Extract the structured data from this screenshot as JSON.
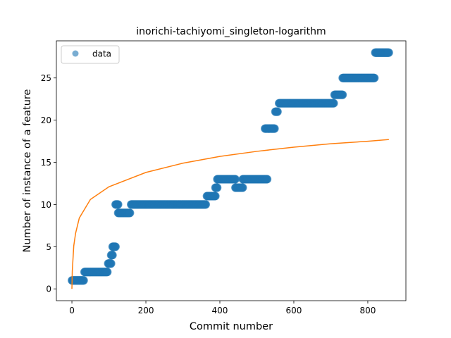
{
  "chart_data": {
    "type": "scatter",
    "title": "inorichi-tachiyomi_singleton-logarithm",
    "xlabel": "Commit number",
    "ylabel": "Number of instance of a feature",
    "xlim": [
      -42,
      903
    ],
    "ylim": [
      -1.4,
      29.4
    ],
    "xticks": [
      0,
      200,
      400,
      600,
      800
    ],
    "yticks": [
      0,
      5,
      10,
      15,
      20,
      25
    ],
    "grid": false,
    "legend": {
      "position": "upper-left",
      "entries": [
        "data"
      ]
    },
    "colors": {
      "data": "#1f77b4",
      "fit": "#ff7f0e"
    },
    "series": [
      {
        "name": "data",
        "kind": "scatter",
        "segments": [
          {
            "x_start": 0,
            "x_end": 32,
            "y": 1
          },
          {
            "x_start": 34,
            "x_end": 96,
            "y": 2
          },
          {
            "x_start": 98,
            "x_end": 106,
            "y": 3
          },
          {
            "x_start": 106,
            "x_end": 110,
            "y": 4
          },
          {
            "x_start": 110,
            "x_end": 118,
            "y": 5
          },
          {
            "x_start": 118,
            "x_end": 125,
            "y": 10
          },
          {
            "x_start": 125,
            "x_end": 157,
            "y": 9
          },
          {
            "x_start": 160,
            "x_end": 362,
            "y": 10
          },
          {
            "x_start": 365,
            "x_end": 388,
            "y": 11
          },
          {
            "x_start": 388,
            "x_end": 393,
            "y": 12
          },
          {
            "x_start": 393,
            "x_end": 442,
            "y": 13
          },
          {
            "x_start": 442,
            "x_end": 462,
            "y": 12
          },
          {
            "x_start": 462,
            "x_end": 528,
            "y": 13
          },
          {
            "x_start": 522,
            "x_end": 548,
            "y": 19
          },
          {
            "x_start": 550,
            "x_end": 556,
            "y": 21
          },
          {
            "x_start": 560,
            "x_end": 708,
            "y": 22
          },
          {
            "x_start": 710,
            "x_end": 732,
            "y": 23
          },
          {
            "x_start": 732,
            "x_end": 818,
            "y": 25
          },
          {
            "x_start": 820,
            "x_end": 857,
            "y": 28
          }
        ]
      },
      {
        "kind": "line",
        "model": "logarithm",
        "x_range": [
          0,
          857
        ],
        "points": [
          [
            0,
            0
          ],
          [
            1,
            2.1
          ],
          [
            5,
            5.1
          ],
          [
            10,
            6.6
          ],
          [
            20,
            8.4
          ],
          [
            50,
            10.6
          ],
          [
            100,
            12.1
          ],
          [
            200,
            13.8
          ],
          [
            300,
            14.9
          ],
          [
            400,
            15.7
          ],
          [
            500,
            16.3
          ],
          [
            600,
            16.8
          ],
          [
            700,
            17.2
          ],
          [
            800,
            17.5
          ],
          [
            857,
            17.7
          ]
        ]
      }
    ]
  }
}
